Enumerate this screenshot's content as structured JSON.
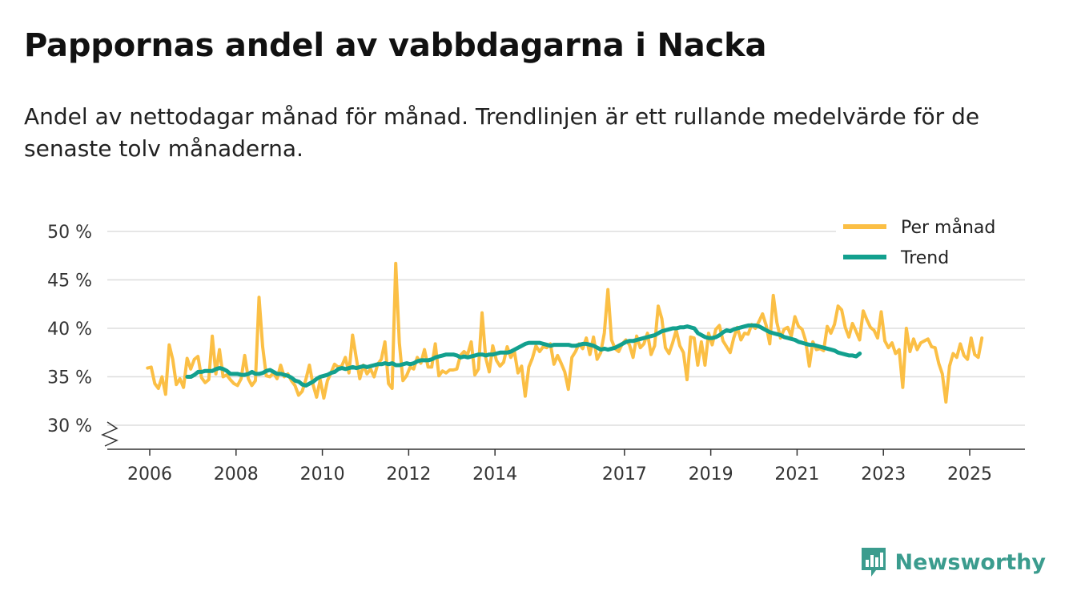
{
  "title": "Pappornas andel av vabbdagarna i Nacka",
  "subtitle": "Andel av nettodagar månad för månad. Trendlinjen är ett rullande medelvärde för de senaste tolv månaderna.",
  "brand": {
    "name": "Newsworthy",
    "color": "#3b9c8e"
  },
  "colors": {
    "monthly": "#fbbf45",
    "trend": "#12a08e",
    "grid": "#dddddd",
    "axis": "#333333"
  },
  "chart_data": {
    "type": "line",
    "title": "Pappornas andel av vabbdagarna i Nacka",
    "xlabel": "",
    "ylabel": "",
    "ylim": [
      30,
      50
    ],
    "xlim": [
      2005.7,
      2026.2
    ],
    "axis_break": true,
    "y_ticks": [
      30,
      35,
      40,
      45,
      50
    ],
    "y_tick_labels": [
      "30 %",
      "35 %",
      "40 %",
      "45 %",
      "50 %"
    ],
    "x_ticks": [
      2006,
      2008,
      2010,
      2012,
      2014,
      2017,
      2019,
      2021,
      2023,
      2025
    ],
    "x_tick_labels": [
      "2006",
      "2008",
      "2010",
      "2012",
      "2014",
      "2017",
      "2019",
      "2021",
      "2023",
      "2025"
    ],
    "legend": {
      "position": "top-right",
      "entries": [
        "Per månad",
        "Trend"
      ]
    },
    "series": [
      {
        "name": "Per månad",
        "x_start": 2005.95,
        "x_step": 0.08333,
        "values": [
          35.9,
          36.0,
          34.3,
          33.8,
          35.0,
          33.2,
          38.3,
          36.8,
          34.2,
          34.8,
          33.9,
          36.9,
          35.8,
          36.8,
          37.1,
          34.9,
          34.4,
          34.7,
          39.2,
          35.3,
          37.8,
          35.0,
          35.2,
          34.7,
          34.3,
          34.1,
          34.8,
          37.2,
          34.8,
          34.1,
          34.6,
          43.2,
          38.1,
          35.1,
          35.0,
          35.4,
          34.8,
          36.2,
          35.0,
          35.3,
          34.6,
          34.1,
          33.1,
          33.5,
          34.7,
          36.2,
          34.2,
          32.9,
          34.7,
          32.8,
          34.6,
          35.4,
          36.3,
          36.0,
          36.1,
          37.0,
          35.4,
          39.3,
          37.0,
          34.8,
          36.2,
          35.3,
          35.8,
          35.0,
          36.3,
          36.8,
          38.6,
          34.3,
          33.8,
          46.7,
          38.5,
          34.6,
          35.1,
          36.0,
          35.8,
          37.0,
          36.4,
          37.8,
          36.0,
          36.0,
          38.4,
          35.1,
          35.6,
          35.4,
          35.7,
          35.7,
          35.8,
          37.2,
          37.6,
          37.3,
          38.6,
          35.2,
          35.8,
          41.6,
          37.0,
          35.5,
          38.2,
          36.7,
          36.1,
          36.5,
          38.1,
          37.0,
          37.6,
          35.4,
          36.1,
          33.0,
          36.0,
          36.9,
          38.2,
          37.6,
          38.1,
          38.0,
          38.4,
          36.3,
          37.2,
          36.4,
          35.5,
          33.7,
          37.0,
          37.6,
          38.4,
          37.9,
          39.0,
          37.3,
          39.1,
          36.8,
          37.5,
          39.5,
          44.0,
          38.8,
          37.9,
          37.6,
          38.4,
          38.8,
          38.3,
          37.0,
          39.2,
          38.0,
          38.4,
          39.5,
          37.3,
          38.2,
          42.3,
          41.0,
          38.0,
          37.4,
          38.5,
          39.8,
          38.2,
          37.5,
          34.7,
          39.1,
          39.0,
          36.2,
          38.6,
          36.2,
          39.5,
          38.3,
          39.9,
          40.3,
          38.7,
          38.1,
          37.5,
          39.0,
          40.1,
          38.8,
          39.5,
          39.4,
          40.4,
          40.0,
          40.7,
          41.5,
          40.3,
          38.4,
          43.4,
          40.6,
          39.0,
          39.9,
          40.1,
          39.2,
          41.2,
          40.2,
          39.9,
          38.7,
          36.1,
          38.6,
          37.8,
          37.9,
          37.7,
          40.2,
          39.5,
          40.4,
          42.3,
          41.9,
          40.1,
          39.1,
          40.5,
          39.7,
          38.8,
          41.8,
          40.9,
          40.1,
          39.8,
          39.0,
          41.7,
          38.7,
          38.0,
          38.5,
          37.4,
          37.8,
          33.9,
          40.0,
          37.6,
          38.9,
          37.8,
          38.5,
          38.7,
          38.9,
          38.1,
          38.0,
          36.4,
          35.3,
          32.4,
          36.1,
          37.4,
          37.0,
          38.4,
          37.2,
          36.8,
          39.0,
          37.3,
          37.0,
          39.0
        ]
      },
      {
        "name": "Trend",
        "x_start": 2006.87,
        "x_step": 0.08333,
        "values": [
          35.0,
          35.0,
          35.2,
          35.5,
          35.5,
          35.6,
          35.6,
          35.6,
          35.8,
          35.9,
          35.8,
          35.6,
          35.3,
          35.3,
          35.3,
          35.2,
          35.2,
          35.3,
          35.5,
          35.3,
          35.3,
          35.4,
          35.6,
          35.7,
          35.5,
          35.3,
          35.3,
          35.2,
          35.1,
          34.9,
          34.6,
          34.5,
          34.2,
          34.1,
          34.3,
          34.5,
          34.8,
          35.0,
          35.1,
          35.2,
          35.4,
          35.5,
          35.8,
          35.9,
          35.8,
          35.9,
          36.0,
          35.9,
          36.0,
          36.1,
          36.0,
          36.1,
          36.2,
          36.3,
          36.3,
          36.4,
          36.3,
          36.4,
          36.2,
          36.2,
          36.3,
          36.4,
          36.3,
          36.4,
          36.6,
          36.7,
          36.7,
          36.7,
          36.8,
          37.0,
          37.1,
          37.2,
          37.3,
          37.3,
          37.3,
          37.2,
          37.0,
          37.1,
          37.0,
          37.1,
          37.2,
          37.3,
          37.3,
          37.2,
          37.3,
          37.3,
          37.4,
          37.5,
          37.5,
          37.5,
          37.6,
          37.8,
          38.0,
          38.2,
          38.4,
          38.5,
          38.5,
          38.5,
          38.5,
          38.4,
          38.3,
          38.2,
          38.3,
          38.3,
          38.3,
          38.3,
          38.3,
          38.2,
          38.2,
          38.3,
          38.4,
          38.4,
          38.3,
          38.2,
          38.0,
          37.8,
          37.9,
          37.8,
          37.9,
          38.0,
          38.2,
          38.4,
          38.6,
          38.7,
          38.7,
          38.8,
          38.9,
          39.0,
          39.1,
          39.2,
          39.3,
          39.5,
          39.7,
          39.8,
          39.9,
          40.0,
          40.0,
          40.1,
          40.1,
          40.2,
          40.1,
          40.0,
          39.5,
          39.3,
          39.1,
          39.0,
          39.0,
          39.1,
          39.3,
          39.6,
          39.8,
          39.7,
          39.9,
          40.0,
          40.1,
          40.2,
          40.3,
          40.3,
          40.3,
          40.2,
          40.0,
          39.8,
          39.6,
          39.5,
          39.4,
          39.3,
          39.1,
          39.0,
          38.9,
          38.8,
          38.6,
          38.5,
          38.4,
          38.3,
          38.3,
          38.2,
          38.1,
          38.0,
          37.9,
          37.8,
          37.7,
          37.5,
          37.4,
          37.3,
          37.2,
          37.2,
          37.1,
          37.4
        ]
      }
    ]
  }
}
